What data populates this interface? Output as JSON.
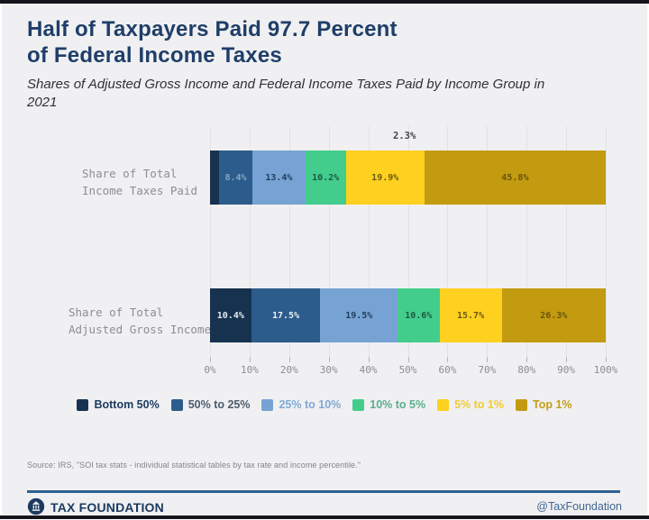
{
  "colors": {
    "background": "#f0f0f2",
    "frame_dark": "#15151d",
    "title_navy": "#1f3e69",
    "brand_navy": "#1c3a60",
    "rule_blue": "#2f6191",
    "grid_gray": "#e2e2e6"
  },
  "header": {
    "title_line1": "Half of Taxpayers Paid 97.7 Percent",
    "title_line2": "of Federal Income Taxes",
    "subtitle": "Shares of Adjusted Gross Income and Federal Income Taxes Paid by Income Group in 2021"
  },
  "chart_data": {
    "type": "bar",
    "stacked": true,
    "orientation": "horizontal",
    "title": "Half of Taxpayers Paid 97.7 Percent of Federal Income Taxes",
    "subtitle": "Shares of Adjusted Gross Income and Federal Income Taxes Paid by Income Group in 2021",
    "xlim": [
      0,
      100
    ],
    "x_ticks": [
      "0%",
      "10%",
      "20%",
      "30%",
      "40%",
      "50%",
      "60%",
      "70%",
      "80%",
      "90%",
      "100%"
    ],
    "grid": true,
    "legend_position": "bottom",
    "groups": [
      "Bottom 50%",
      "50% to 25%",
      "25% to 10%",
      "10% to 5%",
      "5% to 1%",
      "Top 1%"
    ],
    "colors": [
      "#17324f",
      "#2c5c8b",
      "#76a3d3",
      "#43cd8d",
      "#fed01f",
      "#c39b10"
    ],
    "rows": [
      {
        "category": "Share of Total Income Taxes Paid",
        "label_lines": [
          "Share of Total",
          "Income Taxes Paid"
        ],
        "values": [
          2.3,
          8.4,
          13.4,
          10.2,
          19.9,
          45.8
        ],
        "outside_first": true,
        "text_colors": [
          "#42434d",
          "#85a5c3",
          "#21405f",
          "#1c5843",
          "#6d5a13",
          "#68540a"
        ]
      },
      {
        "category": "Share of Total Adjusted Gross Income",
        "label_lines": [
          "Share of Total",
          "Adjusted Gross Income"
        ],
        "values": [
          10.4,
          17.5,
          19.5,
          10.6,
          15.7,
          26.3
        ],
        "outside_first": false,
        "text_colors": [
          "#dfe8f1",
          "#e9eef5",
          "#21405f",
          "#1c5843",
          "#6d5a13",
          "#68540a"
        ]
      }
    ]
  },
  "legend": {
    "items": [
      {
        "label": "Bottom 50%",
        "color": "#17324f",
        "text_color": "#1b3a5f"
      },
      {
        "label": "50% to 25%",
        "color": "#2c5c8b",
        "text_color": "#4c5b6d"
      },
      {
        "label": "25% to 10%",
        "color": "#76a3d3",
        "text_color": "#80a9d4"
      },
      {
        "label": "10% to 5%",
        "color": "#43cd8d",
        "text_color": "#5cae8c"
      },
      {
        "label": "5% to 1%",
        "color": "#fed01f",
        "text_color": "#f2cb30"
      },
      {
        "label": "Top 1%",
        "color": "#c39b10",
        "text_color": "#c59d17"
      }
    ]
  },
  "footer": {
    "source": "Source: IRS, \"SOI tax stats - individual statistical tables by tax rate and income percentile.\"",
    "brand": "TAX FOUNDATION",
    "handle": "@TaxFoundation"
  }
}
